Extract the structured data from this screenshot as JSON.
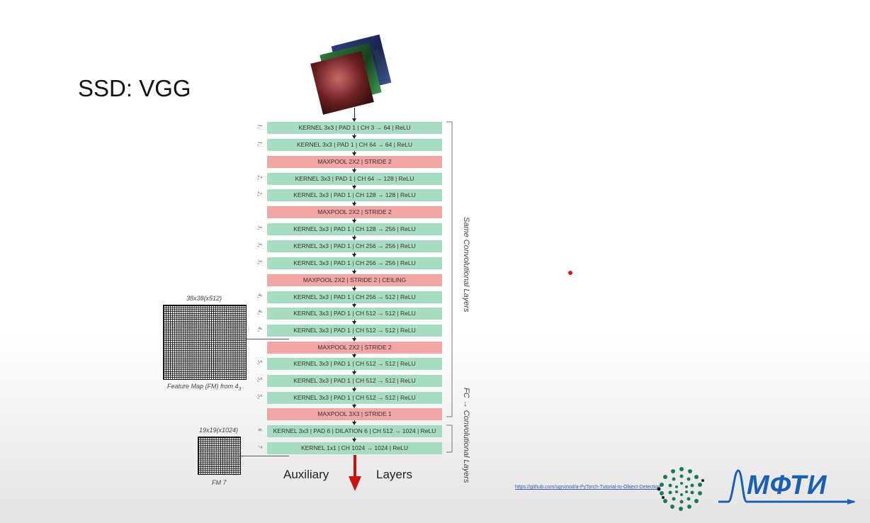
{
  "slide": {
    "title": "SSD: VGG",
    "input_label": "300x300(x3)",
    "fm1_label": "38x38(x512)",
    "fm1_caption": "Feature Map (FM) from 4",
    "fm1_caption_sub": "3",
    "fm2_label": "19x19(x1024)",
    "fm2_caption": "FM 7",
    "side_label_1": "Same Convolutional Layers",
    "side_label_2": "FC → Convolutional Layers",
    "aux_left": "Auxiliary",
    "aux_right": "Layers",
    "link": "https://github.com/sgrvinod/a-PyTorch-Tutorial-to-Object-Detection",
    "logo_text": "МФТИ",
    "colors": {
      "conv": "#a8dcc0",
      "pool": "#f2a5a5",
      "arrow_red": "#cc1111",
      "logo_blue": "#1a5fb4",
      "logo_green": "#1b7a5c"
    }
  },
  "layers": [
    {
      "label": "1₁",
      "text": "KERNEL 3x3 | PAD 1 | CH  3 → 64 | ReLU",
      "kind": "conv"
    },
    {
      "label": "1₂",
      "text": "KERNEL 3x3 | PAD 1 | CH  64 → 64 | ReLU",
      "kind": "conv"
    },
    {
      "label": "",
      "text": "MAXPOOL 2X2 | STRIDE 2",
      "kind": "pool"
    },
    {
      "label": "2₁",
      "text": "KERNEL 3x3 | PAD 1 | CH  64 → 128 | ReLU",
      "kind": "conv"
    },
    {
      "label": "2₂",
      "text": "KERNEL 3x3 | PAD 1 | CH  128 → 128 | ReLU",
      "kind": "conv"
    },
    {
      "label": "",
      "text": "MAXPOOL 2X2 | STRIDE 2",
      "kind": "pool"
    },
    {
      "label": "3₁",
      "text": "KERNEL 3x3 | PAD 1 | CH  128 → 256 | ReLU",
      "kind": "conv"
    },
    {
      "label": "3₂",
      "text": "KERNEL 3x3 | PAD 1 | CH  256 → 256 | ReLU",
      "kind": "conv"
    },
    {
      "label": "3₃",
      "text": "KERNEL 3x3 | PAD 1 | CH  256 → 256 | ReLU",
      "kind": "conv"
    },
    {
      "label": "",
      "text": "MAXPOOL 2X2 | STRIDE 2 | CEILING",
      "kind": "pool"
    },
    {
      "label": "4₁",
      "text": "KERNEL 3x3 | PAD 1 | CH  256 → 512 | ReLU",
      "kind": "conv"
    },
    {
      "label": "4₂",
      "text": "KERNEL 3x3 | PAD 1 | CH  512 → 512 | ReLU",
      "kind": "conv"
    },
    {
      "label": "4₃",
      "text": "KERNEL 3x3 | PAD 1 | CH  512 → 512 | ReLU",
      "kind": "conv"
    },
    {
      "label": "",
      "text": "MAXPOOL 2X2 | STRIDE 2",
      "kind": "pool"
    },
    {
      "label": "5₁",
      "text": "KERNEL 3x3 | PAD 1 | CH  512 → 512 | ReLU",
      "kind": "conv"
    },
    {
      "label": "5₂",
      "text": "KERNEL 3x3 | PAD 1 | CH  512 → 512 | ReLU",
      "kind": "conv"
    },
    {
      "label": "5₃",
      "text": "KERNEL 3x3 | PAD 1 | CH  512 → 512 | ReLU",
      "kind": "conv"
    },
    {
      "label": "",
      "text": "MAXPOOL 3X3 | STRIDE 1",
      "kind": "pool"
    },
    {
      "label": "6",
      "text": "KERNEL 3x3 | PAD 6 | DILATION 6 | CH  512 → 1024 | ReLU",
      "kind": "conv"
    },
    {
      "label": "7",
      "text": "KERNEL 1x1 | CH  1024 → 1024 | ReLU",
      "kind": "conv"
    }
  ]
}
